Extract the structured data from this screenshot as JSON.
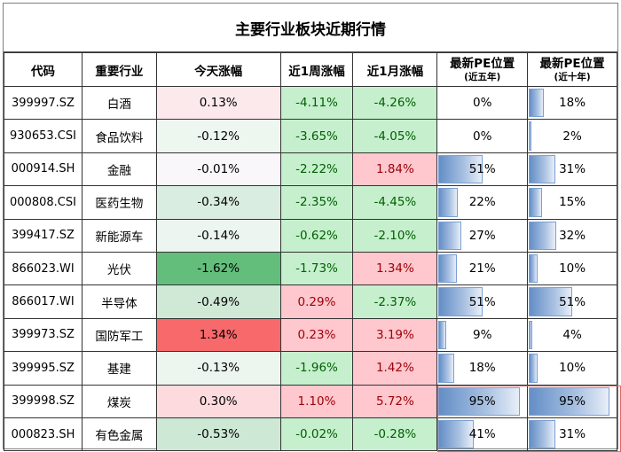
{
  "title": "主要行业板块近期行情",
  "headers": {
    "code": "代码",
    "industry": "重要行业",
    "today": "今天涨幅",
    "week": "近1周涨幅",
    "month": "近1月涨幅",
    "pe5_main": "最新PE位置",
    "pe5_sub": "(近五年)",
    "pe10_main": "最新PE位置",
    "pe10_sub": "(近十年)"
  },
  "colors": {
    "neg_text": "#006100",
    "pos_text": "#9c0006",
    "neg_fill": "#c6efce",
    "pos_fill": "#ffc7ce",
    "bar": "#638ec6",
    "highlight_border": "#e06666"
  },
  "rows": [
    {
      "code": "399997.SZ",
      "industry": "白酒",
      "today": "0.13%",
      "week": "-4.11%",
      "month": "-4.26%",
      "pe5": "0%",
      "pe10": "18%",
      "pe5_bar": 0,
      "pe10_bar": 18,
      "today_bg": "#fce9ec"
    },
    {
      "code": "930653.CSI",
      "industry": "食品饮料",
      "today": "-0.12%",
      "week": "-3.65%",
      "month": "-4.05%",
      "pe5": "0%",
      "pe10": "2%",
      "pe5_bar": 0,
      "pe10_bar": 2,
      "today_bg": "#eef6f0"
    },
    {
      "code": "000914.SH",
      "industry": "金融",
      "today": "-0.01%",
      "week": "-2.22%",
      "month": "1.84%",
      "pe5": "51%",
      "pe10": "31%",
      "pe5_bar": 51,
      "pe10_bar": 31,
      "today_bg": "#f9f7f9"
    },
    {
      "code": "000808.CSI",
      "industry": "医药生物",
      "today": "-0.34%",
      "week": "-2.35%",
      "month": "-4.45%",
      "pe5": "22%",
      "pe10": "15%",
      "pe5_bar": 22,
      "pe10_bar": 15,
      "today_bg": "#d9ede0"
    },
    {
      "code": "399417.SZ",
      "industry": "新能源车",
      "today": "-0.14%",
      "week": "-0.62%",
      "month": "-2.10%",
      "pe5": "27%",
      "pe10": "32%",
      "pe5_bar": 27,
      "pe10_bar": 32,
      "today_bg": "#ecf5ef"
    },
    {
      "code": "866023.WI",
      "industry": "光伏",
      "today": "-1.62%",
      "week": "-1.73%",
      "month": "1.34%",
      "pe5": "21%",
      "pe10": "10%",
      "pe5_bar": 21,
      "pe10_bar": 10,
      "today_bg": "#63be7b"
    },
    {
      "code": "866017.WI",
      "industry": "半导体",
      "today": "-0.49%",
      "week": "0.29%",
      "month": "-2.37%",
      "pe5": "51%",
      "pe10": "51%",
      "pe5_bar": 51,
      "pe10_bar": 51,
      "today_bg": "#d0e9d7"
    },
    {
      "code": "399973.SZ",
      "industry": "国防军工",
      "today": "1.34%",
      "week": "0.23%",
      "month": "3.19%",
      "pe5": "9%",
      "pe10": "4%",
      "pe5_bar": 9,
      "pe10_bar": 4,
      "today_bg": "#f8696b"
    },
    {
      "code": "399995.SZ",
      "industry": "基建",
      "today": "-0.13%",
      "week": "-1.96%",
      "month": "1.42%",
      "pe5": "18%",
      "pe10": "10%",
      "pe5_bar": 18,
      "pe10_bar": 10,
      "today_bg": "#edf5ef"
    },
    {
      "code": "399998.SZ",
      "industry": "煤炭",
      "today": "0.30%",
      "week": "1.10%",
      "month": "5.72%",
      "pe5": "95%",
      "pe10": "95%",
      "pe5_bar": 95,
      "pe10_bar": 95,
      "today_bg": "#fcdadd"
    },
    {
      "code": "000823.SH",
      "industry": "有色金属",
      "today": "-0.53%",
      "week": "-0.02%",
      "month": "-0.28%",
      "pe5": "41%",
      "pe10": "31%",
      "pe5_bar": 41,
      "pe10_bar": 31,
      "today_bg": "#cde8d5"
    }
  ]
}
